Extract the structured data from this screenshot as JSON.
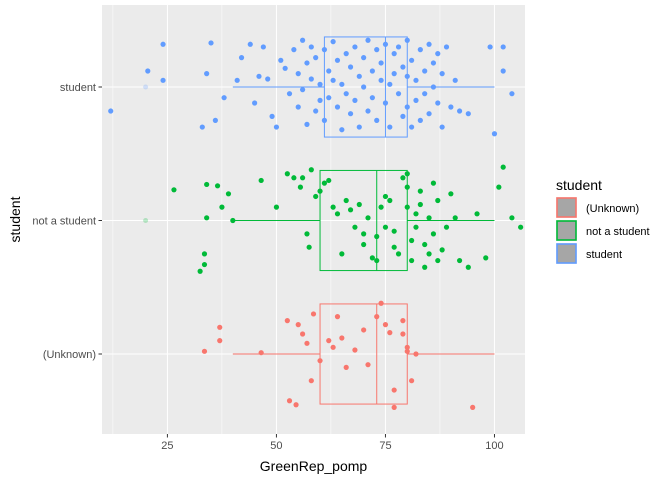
{
  "chart_data": {
    "type": "boxplot-jitter",
    "xlabel": "GreenRep_pomp",
    "ylabel": "student",
    "xlim": [
      10,
      107
    ],
    "x_ticks": [
      25,
      50,
      75,
      100
    ],
    "categories": [
      "(Unknown)",
      "not a student",
      "student"
    ],
    "grid": true,
    "orientation": "horizontal",
    "legend": {
      "title": "student",
      "position": "right",
      "entries": [
        "(Unknown)",
        "not a student",
        "student"
      ]
    },
    "colors": {
      "(Unknown)": "#F8766D",
      "not a student": "#00BA38",
      "student": "#619CFF",
      "panel": "#EBEBEB",
      "grid": "#FFFFFF"
    },
    "series": [
      {
        "name": "(Unknown)",
        "box": {
          "min": 40,
          "q1": 60,
          "median": 73,
          "q3": 80,
          "max": 100
        },
        "outliers": [],
        "points": [
          [
            33.5,
            0.02
          ],
          [
            37,
            0.2
          ],
          [
            37,
            0.1
          ],
          [
            46.5,
            0.01
          ],
          [
            52.5,
            0.25
          ],
          [
            53,
            -0.35
          ],
          [
            54.5,
            -0.38
          ],
          [
            55,
            0.22
          ],
          [
            56,
            0.15
          ],
          [
            57,
            0.08
          ],
          [
            58,
            -0.2
          ],
          [
            58.5,
            0.3
          ],
          [
            60,
            -0.05
          ],
          [
            62,
            0.1
          ],
          [
            63,
            0.05
          ],
          [
            64,
            0.28
          ],
          [
            65,
            0.12
          ],
          [
            66,
            -0.1
          ],
          [
            68,
            0.03
          ],
          [
            70,
            0.18
          ],
          [
            71,
            -0.08
          ],
          [
            73,
            0.28
          ],
          [
            74,
            0.38
          ],
          [
            75,
            0.22
          ],
          [
            76,
            0.16
          ],
          [
            77,
            -0.27
          ],
          [
            77,
            -0.4
          ],
          [
            79,
            0.25
          ],
          [
            79,
            0.15
          ],
          [
            80,
            0.05
          ],
          [
            80,
            0.02
          ],
          [
            81,
            -0.2
          ],
          [
            82,
            0
          ],
          [
            95,
            -0.4
          ]
        ]
      },
      {
        "name": "not a student",
        "box": {
          "min": 40,
          "q1": 60,
          "median": 73,
          "q3": 80,
          "max": 100
        },
        "outliers": [
          20
        ],
        "points": [
          [
            26.5,
            0.23
          ],
          [
            32.5,
            -0.38
          ],
          [
            33.5,
            -0.33
          ],
          [
            33.5,
            -0.25
          ],
          [
            34,
            0.27
          ],
          [
            34,
            0.02
          ],
          [
            36.5,
            0.26
          ],
          [
            37.5,
            0.1
          ],
          [
            39,
            0.2
          ],
          [
            40,
            0
          ],
          [
            46.5,
            0.3
          ],
          [
            50,
            0.1
          ],
          [
            52.5,
            0.35
          ],
          [
            54,
            0.32
          ],
          [
            55.5,
            0.25
          ],
          [
            56,
            0.32
          ],
          [
            57,
            -0.1
          ],
          [
            57.5,
            -0.2
          ],
          [
            58,
            0.38
          ],
          [
            59,
            0.18
          ],
          [
            60,
            0.22
          ],
          [
            61,
            0.28
          ],
          [
            62,
            0.3
          ],
          [
            63,
            0.1
          ],
          [
            64,
            0.05
          ],
          [
            65,
            -0.25
          ],
          [
            66,
            0.15
          ],
          [
            67,
            0.08
          ],
          [
            68,
            -0.05
          ],
          [
            69,
            0.12
          ],
          [
            70,
            -0.1
          ],
          [
            70,
            -0.18
          ],
          [
            71,
            0.02
          ],
          [
            72,
            -0.28
          ],
          [
            73,
            -0.12
          ],
          [
            73,
            -0.3
          ],
          [
            74,
            0.1
          ],
          [
            75,
            0.18
          ],
          [
            75,
            -0.05
          ],
          [
            76,
            0.15
          ],
          [
            77,
            -0.08
          ],
          [
            77,
            -0.2
          ],
          [
            78,
            -0.25
          ],
          [
            79,
            0.32
          ],
          [
            80,
            0.35
          ],
          [
            80,
            0.25
          ],
          [
            80,
            0.1
          ],
          [
            81,
            -0.15
          ],
          [
            81,
            -0.3
          ],
          [
            82,
            -0.05
          ],
          [
            82,
            0.05
          ],
          [
            83,
            0.12
          ],
          [
            83,
            0.22
          ],
          [
            84,
            -0.18
          ],
          [
            84,
            -0.35
          ],
          [
            85,
            0.02
          ],
          [
            85,
            -0.25
          ],
          [
            86,
            0.28
          ],
          [
            86,
            -0.1
          ],
          [
            87,
            -0.3
          ],
          [
            87,
            0.15
          ],
          [
            88,
            -0.22
          ],
          [
            89,
            -0.05
          ],
          [
            90,
            0.2
          ],
          [
            91,
            0.02
          ],
          [
            92,
            -0.3
          ],
          [
            94,
            -0.35
          ],
          [
            96,
            0.05
          ],
          [
            98,
            -0.28
          ],
          [
            101,
            0.25
          ],
          [
            102,
            0.4
          ],
          [
            104,
            0.02
          ],
          [
            106,
            -0.05
          ]
        ]
      },
      {
        "name": "student",
        "box": {
          "min": 40,
          "q1": 61,
          "median": 75,
          "q3": 80,
          "max": 100
        },
        "outliers": [
          20
        ],
        "points": [
          [
            12,
            -0.18
          ],
          [
            20.5,
            0.12
          ],
          [
            24,
            0.05
          ],
          [
            24,
            0.32
          ],
          [
            33,
            -0.3
          ],
          [
            34,
            0.1
          ],
          [
            35,
            0.33
          ],
          [
            36,
            -0.25
          ],
          [
            38,
            -0.08
          ],
          [
            41,
            0.05
          ],
          [
            42,
            0.22
          ],
          [
            44,
            0.32
          ],
          [
            45,
            -0.12
          ],
          [
            46,
            0.08
          ],
          [
            47,
            0.3
          ],
          [
            48,
            0.06
          ],
          [
            49,
            -0.22
          ],
          [
            50,
            -0.3
          ],
          [
            51,
            0.2
          ],
          [
            52,
            0.14
          ],
          [
            53,
            -0.05
          ],
          [
            54,
            0.28
          ],
          [
            55,
            -0.15
          ],
          [
            55,
            0.1
          ],
          [
            56,
            0.35
          ],
          [
            56,
            -0.02
          ],
          [
            57,
            0.18
          ],
          [
            57,
            -0.28
          ],
          [
            58,
            0.3
          ],
          [
            58,
            0.06
          ],
          [
            59,
            -0.18
          ],
          [
            59,
            0.22
          ],
          [
            60,
            0.02
          ],
          [
            60,
            -0.1
          ],
          [
            61,
            0.28
          ],
          [
            61,
            -0.25
          ],
          [
            62,
            0.12
          ],
          [
            62,
            -0.08
          ],
          [
            63,
            0.34
          ],
          [
            63,
            0.05
          ],
          [
            64,
            -0.15
          ],
          [
            64,
            0.2
          ],
          [
            65,
            -0.32
          ],
          [
            65,
            0.02
          ],
          [
            66,
            0.25
          ],
          [
            66,
            -0.05
          ],
          [
            67,
            0.15
          ],
          [
            67,
            -0.2
          ],
          [
            68,
            0.3
          ],
          [
            68,
            -0.1
          ],
          [
            69,
            0.08
          ],
          [
            69,
            -0.3
          ],
          [
            70,
            0.22
          ],
          [
            70,
            0.0
          ],
          [
            71,
            -0.18
          ],
          [
            71,
            0.35
          ],
          [
            72,
            0.12
          ],
          [
            72,
            -0.08
          ],
          [
            73,
            0.28
          ],
          [
            73,
            -0.25
          ],
          [
            74,
            0.05
          ],
          [
            74,
            0.18
          ],
          [
            75,
            -0.12
          ],
          [
            75,
            0.32
          ],
          [
            76,
            0.02
          ],
          [
            76,
            -0.3
          ],
          [
            77,
            0.25
          ],
          [
            77,
            0.1
          ],
          [
            78,
            -0.05
          ],
          [
            78,
            0.3
          ],
          [
            79,
            -0.22
          ],
          [
            79,
            0.15
          ],
          [
            80,
            0.08
          ],
          [
            80,
            -0.15
          ],
          [
            80,
            0.35
          ],
          [
            81,
            -0.3
          ],
          [
            81,
            0.2
          ],
          [
            82,
            0.05
          ],
          [
            82,
            -0.1
          ],
          [
            83,
            0.28
          ],
          [
            83,
            -0.25
          ],
          [
            84,
            0.12
          ],
          [
            84,
            -0.05
          ],
          [
            85,
            0.32
          ],
          [
            85,
            -0.2
          ],
          [
            86,
            0.18
          ],
          [
            86,
            0.0
          ],
          [
            87,
            -0.12
          ],
          [
            87,
            0.25
          ],
          [
            88,
            -0.3
          ],
          [
            88,
            0.1
          ],
          [
            89,
            0.3
          ],
          [
            90,
            -0.15
          ],
          [
            91,
            0.05
          ],
          [
            92,
            -0.18
          ],
          [
            94,
            -0.2
          ],
          [
            99,
            0.3
          ],
          [
            100,
            -0.35
          ],
          [
            102,
            0.3
          ],
          [
            102,
            0.12
          ],
          [
            104,
            -0.05
          ]
        ]
      }
    ]
  }
}
